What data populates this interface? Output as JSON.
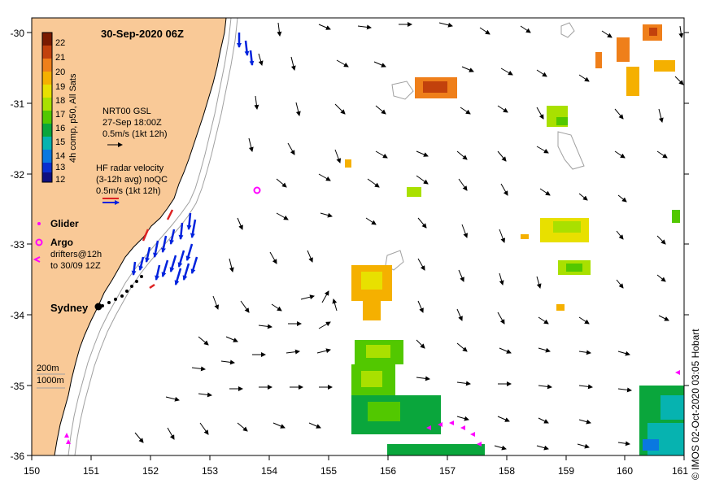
{
  "title": "30-Sep-2020 06Z",
  "colorbar": {
    "label": "4h comp, p50, All Sats",
    "ticks": [
      "22",
      "21",
      "20",
      "19",
      "18",
      "17",
      "16",
      "15",
      "14",
      "13",
      "12"
    ],
    "colors": [
      "#7a1a00",
      "#c2410c",
      "#ef7f1a",
      "#f5b000",
      "#e8e000",
      "#a9e000",
      "#52c800",
      "#0aa63c",
      "#06b3b0",
      "#0a78e0",
      "#0a2fd0",
      "#101080"
    ]
  },
  "legend": {
    "gsl": [
      "NRT00 GSL",
      "27-Sep 18:00Z",
      "0.5m/s (1kt 12h)"
    ],
    "hf": [
      "HF radar velocity",
      "(3-12h avg) noQC",
      "0.5m/s (1kt 12h)"
    ],
    "glider": "Glider",
    "argo": "Argo",
    "drifters": [
      "drifters@12h",
      "to 30/09 12Z"
    ],
    "depth": [
      "200m",
      "1000m"
    ]
  },
  "place": "Sydney",
  "axes": {
    "x_ticks": [
      "150",
      "151",
      "152",
      "153",
      "154",
      "155",
      "156",
      "157",
      "158",
      "159",
      "160",
      "161"
    ],
    "y_ticks": [
      "-30",
      "-31",
      "-32",
      "-33",
      "-34",
      "-35",
      "-36"
    ],
    "xlim": [
      150,
      161
    ],
    "ylim": [
      -36,
      -30
    ]
  },
  "credit": "© IMOS 02-Oct-2020 03:05 Hobart",
  "colors": {
    "land": "#f9c997",
    "coast": "#000000",
    "isobath": "#a0a0a0",
    "hf_blue": "#0022dd",
    "hf_red": "#dd2222",
    "argo": "#ff00ff",
    "drifter": "#ff00ff"
  }
}
